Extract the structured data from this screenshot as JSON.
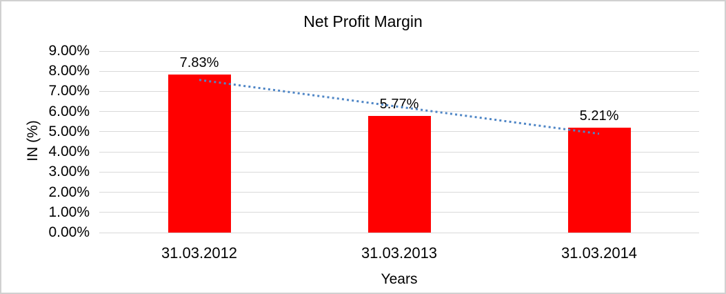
{
  "chart_data": {
    "type": "bar",
    "title": "Net Profit Margin",
    "xlabel": "Years",
    "ylabel": "IN (%)",
    "categories": [
      "31.03.2012",
      "31.03.2013",
      "31.03.2014"
    ],
    "values": [
      7.83,
      5.77,
      5.21
    ],
    "data_labels": [
      "7.83%",
      "5.77%",
      "5.21%"
    ],
    "y_ticks": [
      "0.00%",
      "1.00%",
      "2.00%",
      "3.00%",
      "4.00%",
      "5.00%",
      "6.00%",
      "7.00%",
      "8.00%",
      "9.00%"
    ],
    "ylim": [
      0,
      9
    ],
    "grid": true,
    "legend": "none",
    "bar_color": "#ff0000",
    "gridline_color": "#d9d9d9",
    "trendline": {
      "type": "linear",
      "style": "dotted",
      "color": "#4f86c6",
      "start_value": 7.57,
      "end_value": 4.9
    }
  }
}
